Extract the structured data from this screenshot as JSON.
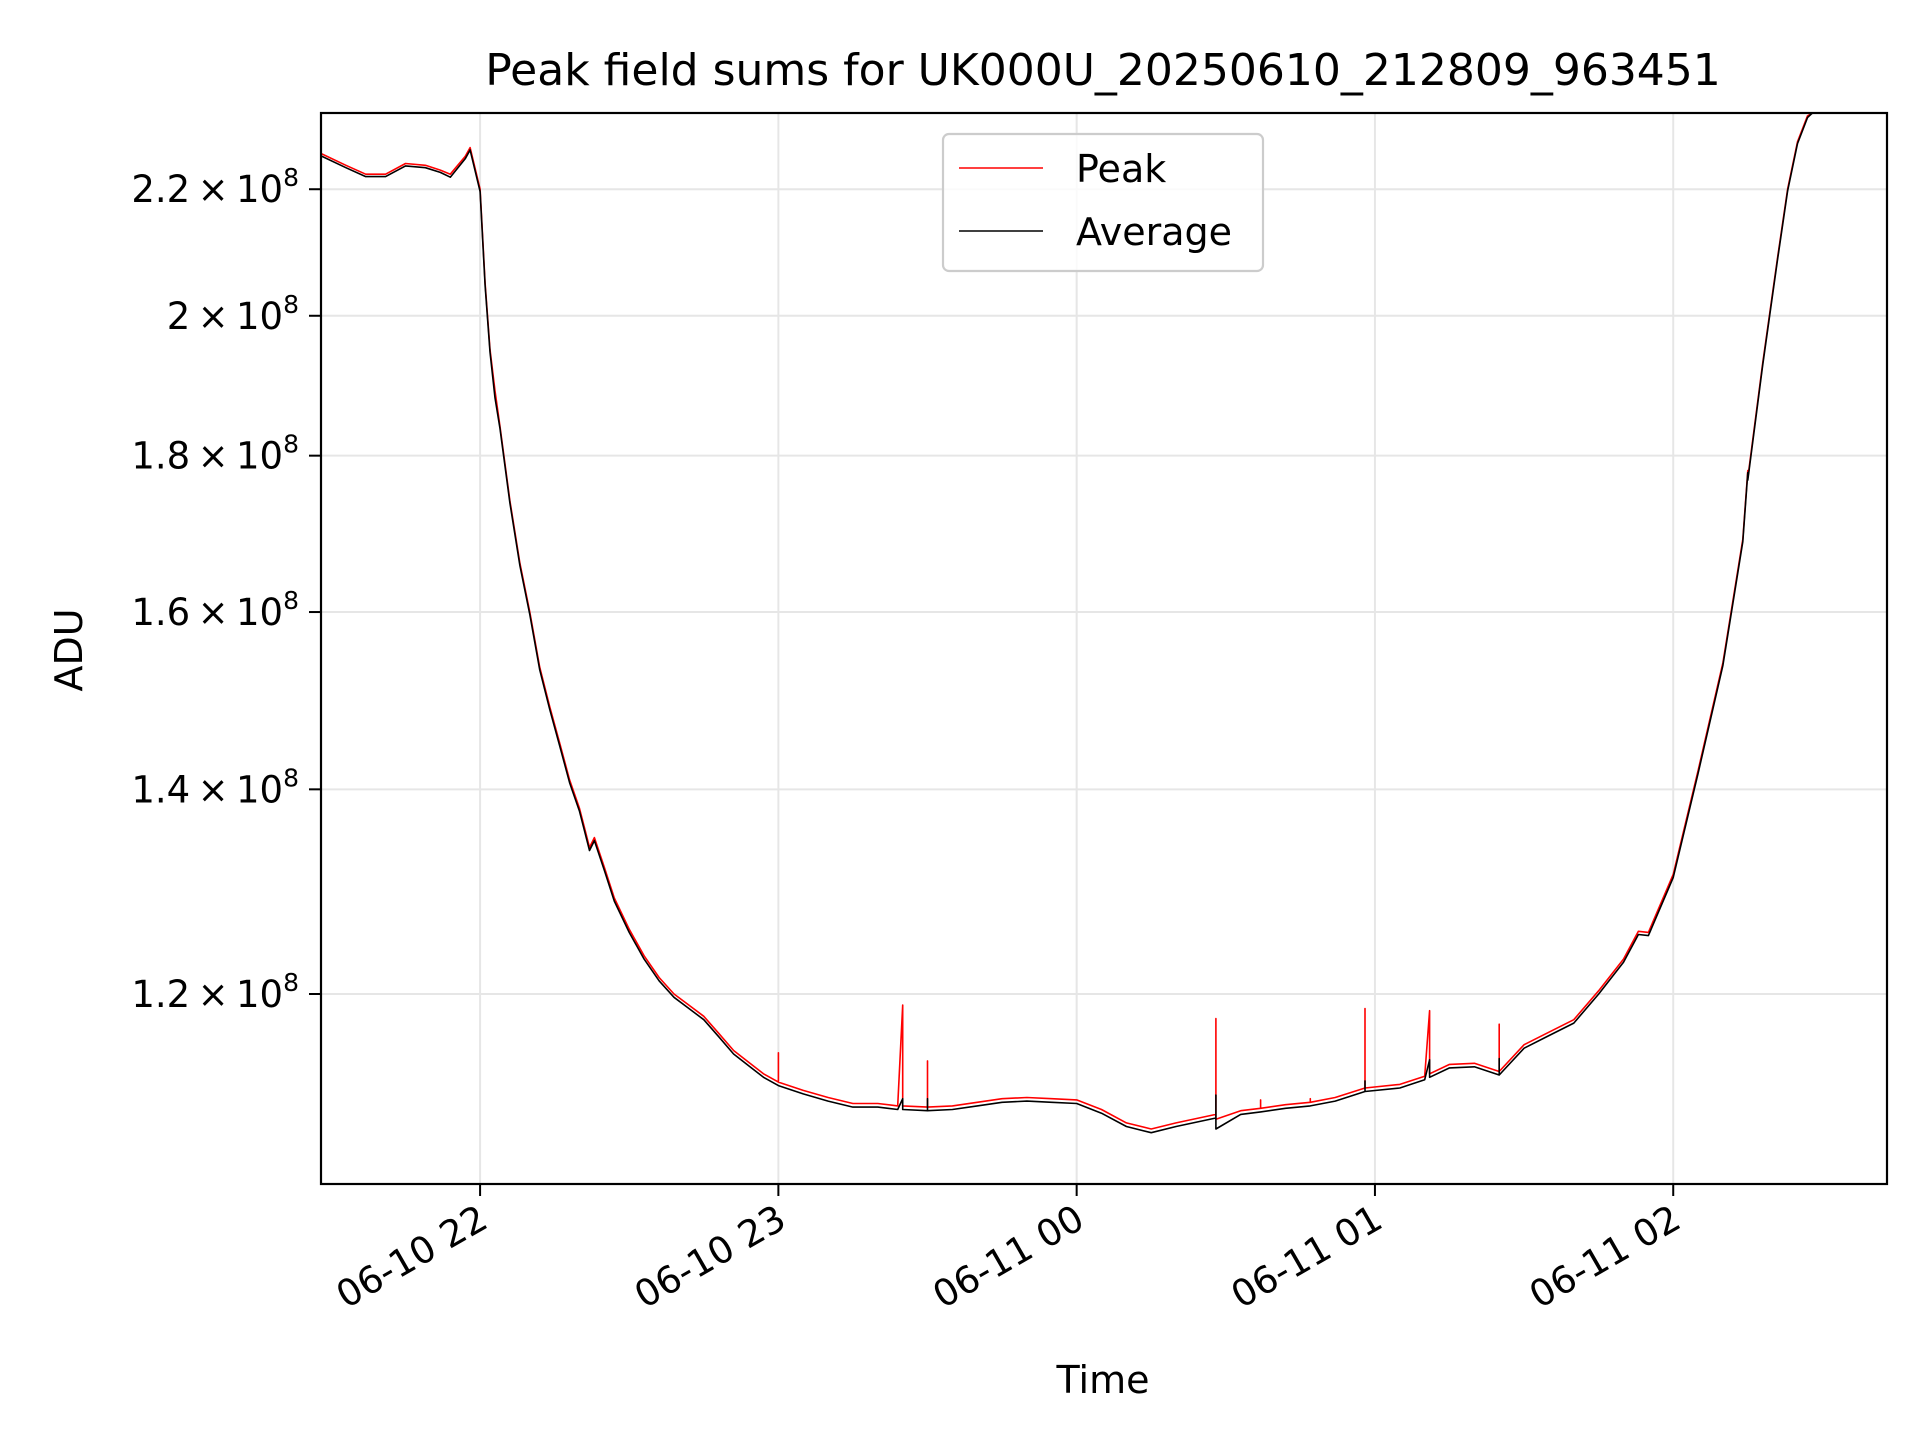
{
  "chart_data": {
    "type": "line",
    "title": "Peak field sums for UK000U_20250610_212809_963451",
    "xlabel": "Time",
    "ylabel": "ADU",
    "y_scale": "log",
    "grid": true,
    "legend_position": "top-center",
    "x_range": [
      "2025-06-10 21:28",
      "2025-06-11 02:43"
    ],
    "ylim": [
      104000000,
      233000000
    ],
    "x_ticks": [
      {
        "t": "2025-06-10 22:00",
        "label": "06-10 22"
      },
      {
        "t": "2025-06-10 23:00",
        "label": "06-10 23"
      },
      {
        "t": "2025-06-11 00:00",
        "label": "06-11 00"
      },
      {
        "t": "2025-06-11 01:00",
        "label": "06-11 01"
      },
      {
        "t": "2025-06-11 02:00",
        "label": "06-11 02"
      }
    ],
    "y_ticks": [
      {
        "value": 120000000,
        "mantissa": "1.2",
        "exp": "8"
      },
      {
        "value": 140000000,
        "mantissa": "1.4",
        "exp": "8"
      },
      {
        "value": 160000000,
        "mantissa": "1.6",
        "exp": "8"
      },
      {
        "value": 180000000,
        "mantissa": "1.8",
        "exp": "8"
      },
      {
        "value": 200000000,
        "mantissa": "2",
        "exp": "8"
      },
      {
        "value": 220000000,
        "mantissa": "2.2",
        "exp": "8"
      }
    ],
    "series": [
      {
        "name": "Peak",
        "color": "#ff0000",
        "points": [
          [
            "2025-06-10 21:28",
            226000000
          ],
          [
            "2025-06-10 21:33",
            224000000
          ],
          [
            "2025-06-10 21:37",
            222500000
          ],
          [
            "2025-06-10 21:41",
            222500000
          ],
          [
            "2025-06-10 21:45",
            224300000
          ],
          [
            "2025-06-10 21:49",
            224000000
          ],
          [
            "2025-06-10 21:52",
            223200000
          ],
          [
            "2025-06-10 21:54",
            222500000
          ],
          [
            "2025-06-10 21:57",
            225500000
          ],
          [
            "2025-06-10 21:58",
            227000000
          ],
          [
            "2025-06-10 22:00",
            220000000
          ],
          [
            "2025-06-10 22:01",
            205000000
          ],
          [
            "2025-06-10 22:02",
            195000000
          ],
          [
            "2025-06-10 22:03",
            189000000
          ],
          [
            "2025-06-10 22:04",
            184000000
          ],
          [
            "2025-06-10 22:06",
            174000000
          ],
          [
            "2025-06-10 22:08",
            166000000
          ],
          [
            "2025-06-10 22:10",
            160000000
          ],
          [
            "2025-06-10 22:12",
            153500000
          ],
          [
            "2025-06-10 22:14",
            149000000
          ],
          [
            "2025-06-10 22:16",
            145000000
          ],
          [
            "2025-06-10 22:18",
            141000000
          ],
          [
            "2025-06-10 22:20",
            138000000
          ],
          [
            "2025-06-10 22:21",
            136000000
          ],
          [
            "2025-06-10 22:22",
            134000000
          ],
          [
            "2025-06-10 22:23",
            135000000
          ],
          [
            "2025-06-10 22:25",
            132000000
          ],
          [
            "2025-06-10 22:27",
            129000000
          ],
          [
            "2025-06-10 22:30",
            126000000
          ],
          [
            "2025-06-10 22:33",
            123500000
          ],
          [
            "2025-06-10 22:36",
            121500000
          ],
          [
            "2025-06-10 22:39",
            120000000
          ],
          [
            "2025-06-10 22:42",
            119000000
          ],
          [
            "2025-06-10 22:45",
            118000000
          ],
          [
            "2025-06-10 22:48",
            116500000
          ],
          [
            "2025-06-10 22:51",
            115000000
          ],
          [
            "2025-06-10 22:54",
            114000000
          ],
          [
            "2025-06-10 22:57",
            113000000
          ],
          [
            "2025-06-10 23:00",
            112300000
          ],
          [
            "2025-06-10 23:00",
            114800000
          ],
          [
            "2025-06-10 23:00",
            112300000
          ],
          [
            "2025-06-10 23:05",
            111600000
          ],
          [
            "2025-06-10 23:10",
            111000000
          ],
          [
            "2025-06-10 23:15",
            110500000
          ],
          [
            "2025-06-10 23:20",
            110500000
          ],
          [
            "2025-06-10 23:24",
            110300000
          ],
          [
            "2025-06-10 23:25",
            119000000
          ],
          [
            "2025-06-10 23:25",
            110300000
          ],
          [
            "2025-06-10 23:30",
            110200000
          ],
          [
            "2025-06-10 23:30",
            114100000
          ],
          [
            "2025-06-10 23:30",
            110200000
          ],
          [
            "2025-06-10 23:35",
            110300000
          ],
          [
            "2025-06-10 23:40",
            110600000
          ],
          [
            "2025-06-10 23:45",
            110900000
          ],
          [
            "2025-06-10 23:50",
            111000000
          ],
          [
            "2025-06-10 23:55",
            110900000
          ],
          [
            "2025-06-11 00:00",
            110800000
          ],
          [
            "2025-06-11 00:05",
            110000000
          ],
          [
            "2025-06-11 00:10",
            108900000
          ],
          [
            "2025-06-11 00:15",
            108400000
          ],
          [
            "2025-06-11 00:20",
            108900000
          ],
          [
            "2025-06-11 00:28",
            109600000
          ],
          [
            "2025-06-11 00:28",
            117800000
          ],
          [
            "2025-06-11 00:28",
            109200000
          ],
          [
            "2025-06-11 00:33",
            109900000
          ],
          [
            "2025-06-11 00:37",
            110100000
          ],
          [
            "2025-06-11 00:37",
            110800000
          ],
          [
            "2025-06-11 00:37",
            110100000
          ],
          [
            "2025-06-11 00:42",
            110400000
          ],
          [
            "2025-06-11 00:47",
            110600000
          ],
          [
            "2025-06-11 00:47",
            110900000
          ],
          [
            "2025-06-11 00:47",
            110600000
          ],
          [
            "2025-06-11 00:52",
            111000000
          ],
          [
            "2025-06-11 00:58",
            111800000
          ],
          [
            "2025-06-11 00:58",
            118700000
          ],
          [
            "2025-06-11 00:58",
            111800000
          ],
          [
            "2025-06-11 01:05",
            112100000
          ],
          [
            "2025-06-11 01:10",
            112800000
          ],
          [
            "2025-06-11 01:11",
            118500000
          ],
          [
            "2025-06-11 01:11",
            113000000
          ],
          [
            "2025-06-11 01:15",
            113800000
          ],
          [
            "2025-06-11 01:20",
            113900000
          ],
          [
            "2025-06-11 01:25",
            113200000
          ],
          [
            "2025-06-11 01:25",
            117300000
          ],
          [
            "2025-06-11 01:25",
            113200000
          ],
          [
            "2025-06-11 01:30",
            115500000
          ],
          [
            "2025-06-11 01:35",
            116600000
          ],
          [
            "2025-06-11 01:40",
            117700000
          ],
          [
            "2025-06-11 01:45",
            120300000
          ],
          [
            "2025-06-11 01:50",
            123200000
          ],
          [
            "2025-06-11 01:53",
            125800000
          ],
          [
            "2025-06-11 01:55",
            125700000
          ],
          [
            "2025-06-11 02:00",
            131300000
          ],
          [
            "2025-06-11 02:05",
            142000000
          ],
          [
            "2025-06-11 02:10",
            154000000
          ],
          [
            "2025-06-11 02:14",
            169000000
          ],
          [
            "2025-06-11 02:15",
            178000000
          ],
          [
            "2025-06-11 02:15",
            177000000
          ],
          [
            "2025-06-11 02:18",
            193000000
          ],
          [
            "2025-06-11 02:21",
            209000000
          ],
          [
            "2025-06-11 02:23",
            220000000
          ],
          [
            "2025-06-11 02:25",
            228000000
          ],
          [
            "2025-06-11 02:27",
            232500000
          ],
          [
            "2025-06-11 02:28",
            233000000
          ],
          [
            "2025-06-11 02:43",
            233000000
          ]
        ]
      },
      {
        "name": "Average",
        "color": "#000000",
        "points": [
          [
            "2025-06-10 21:28",
            225600000
          ],
          [
            "2025-06-10 21:33",
            223600000
          ],
          [
            "2025-06-10 21:37",
            222100000
          ],
          [
            "2025-06-10 21:41",
            222100000
          ],
          [
            "2025-06-10 21:45",
            223900000
          ],
          [
            "2025-06-10 21:49",
            223600000
          ],
          [
            "2025-06-10 21:52",
            222800000
          ],
          [
            "2025-06-10 21:54",
            222000000
          ],
          [
            "2025-06-10 21:57",
            225100000
          ],
          [
            "2025-06-10 21:58",
            226600000
          ],
          [
            "2025-06-10 22:00",
            219600000
          ],
          [
            "2025-06-10 22:01",
            204600000
          ],
          [
            "2025-06-10 22:02",
            194600000
          ],
          [
            "2025-06-10 22:03",
            188000000
          ],
          [
            "2025-06-10 22:04",
            183700000
          ],
          [
            "2025-06-10 22:06",
            173700000
          ],
          [
            "2025-06-10 22:08",
            165700000
          ],
          [
            "2025-06-10 22:10",
            159700000
          ],
          [
            "2025-06-10 22:12",
            153200000
          ],
          [
            "2025-06-10 22:14",
            148700000
          ],
          [
            "2025-06-10 22:16",
            144700000
          ],
          [
            "2025-06-10 22:18",
            140700000
          ],
          [
            "2025-06-10 22:20",
            137700000
          ],
          [
            "2025-06-10 22:21",
            135700000
          ],
          [
            "2025-06-10 22:22",
            133700000
          ],
          [
            "2025-06-10 22:23",
            134700000
          ],
          [
            "2025-06-10 22:25",
            131700000
          ],
          [
            "2025-06-10 22:27",
            128700000
          ],
          [
            "2025-06-10 22:30",
            125700000
          ],
          [
            "2025-06-10 22:33",
            123200000
          ],
          [
            "2025-06-10 22:36",
            121200000
          ],
          [
            "2025-06-10 22:39",
            119700000
          ],
          [
            "2025-06-10 22:42",
            118700000
          ],
          [
            "2025-06-10 22:45",
            117700000
          ],
          [
            "2025-06-10 22:48",
            116200000
          ],
          [
            "2025-06-10 22:51",
            114700000
          ],
          [
            "2025-06-10 22:54",
            113700000
          ],
          [
            "2025-06-10 22:57",
            112700000
          ],
          [
            "2025-06-10 23:00",
            112000000
          ],
          [
            "2025-06-10 23:05",
            111300000
          ],
          [
            "2025-06-10 23:10",
            110700000
          ],
          [
            "2025-06-10 23:15",
            110200000
          ],
          [
            "2025-06-10 23:20",
            110200000
          ],
          [
            "2025-06-10 23:24",
            110000000
          ],
          [
            "2025-06-10 23:25",
            110900000
          ],
          [
            "2025-06-10 23:25",
            110000000
          ],
          [
            "2025-06-10 23:30",
            109900000
          ],
          [
            "2025-06-10 23:30",
            110900000
          ],
          [
            "2025-06-10 23:30",
            109900000
          ],
          [
            "2025-06-10 23:35",
            110000000
          ],
          [
            "2025-06-10 23:40",
            110300000
          ],
          [
            "2025-06-10 23:45",
            110600000
          ],
          [
            "2025-06-10 23:50",
            110700000
          ],
          [
            "2025-06-10 23:55",
            110600000
          ],
          [
            "2025-06-11 00:00",
            110500000
          ],
          [
            "2025-06-11 00:05",
            109700000
          ],
          [
            "2025-06-11 00:10",
            108600000
          ],
          [
            "2025-06-11 00:15",
            108100000
          ],
          [
            "2025-06-11 00:20",
            108600000
          ],
          [
            "2025-06-11 00:28",
            109300000
          ],
          [
            "2025-06-11 00:28",
            111200000
          ],
          [
            "2025-06-11 00:28",
            108400000
          ],
          [
            "2025-06-11 00:33",
            109600000
          ],
          [
            "2025-06-11 00:37",
            109800000
          ],
          [
            "2025-06-11 00:42",
            110100000
          ],
          [
            "2025-06-11 00:47",
            110300000
          ],
          [
            "2025-06-11 00:52",
            110700000
          ],
          [
            "2025-06-11 00:58",
            111500000
          ],
          [
            "2025-06-11 00:58",
            112400000
          ],
          [
            "2025-06-11 00:58",
            111500000
          ],
          [
            "2025-06-11 01:05",
            111800000
          ],
          [
            "2025-06-11 01:10",
            112500000
          ],
          [
            "2025-06-11 01:11",
            114200000
          ],
          [
            "2025-06-11 01:11",
            112700000
          ],
          [
            "2025-06-11 01:15",
            113500000
          ],
          [
            "2025-06-11 01:20",
            113600000
          ],
          [
            "2025-06-11 01:25",
            112900000
          ],
          [
            "2025-06-11 01:25",
            114300000
          ],
          [
            "2025-06-11 01:25",
            112900000
          ],
          [
            "2025-06-11 01:30",
            115200000
          ],
          [
            "2025-06-11 01:35",
            116300000
          ],
          [
            "2025-06-11 01:40",
            117400000
          ],
          [
            "2025-06-11 01:45",
            120000000
          ],
          [
            "2025-06-11 01:50",
            122900000
          ],
          [
            "2025-06-11 01:53",
            125500000
          ],
          [
            "2025-06-11 01:55",
            125400000
          ],
          [
            "2025-06-11 02:00",
            131000000
          ],
          [
            "2025-06-11 02:05",
            141700000
          ],
          [
            "2025-06-11 02:10",
            153700000
          ],
          [
            "2025-06-11 02:14",
            168700000
          ],
          [
            "2025-06-11 02:15",
            177700000
          ],
          [
            "2025-06-11 02:15",
            176700000
          ],
          [
            "2025-06-11 02:18",
            192700000
          ],
          [
            "2025-06-11 02:21",
            208700000
          ],
          [
            "2025-06-11 02:23",
            219700000
          ],
          [
            "2025-06-11 02:25",
            227700000
          ],
          [
            "2025-06-11 02:27",
            232200000
          ],
          [
            "2025-06-11 02:28",
            233000000
          ],
          [
            "2025-06-11 02:43",
            233000000
          ]
        ]
      }
    ]
  }
}
